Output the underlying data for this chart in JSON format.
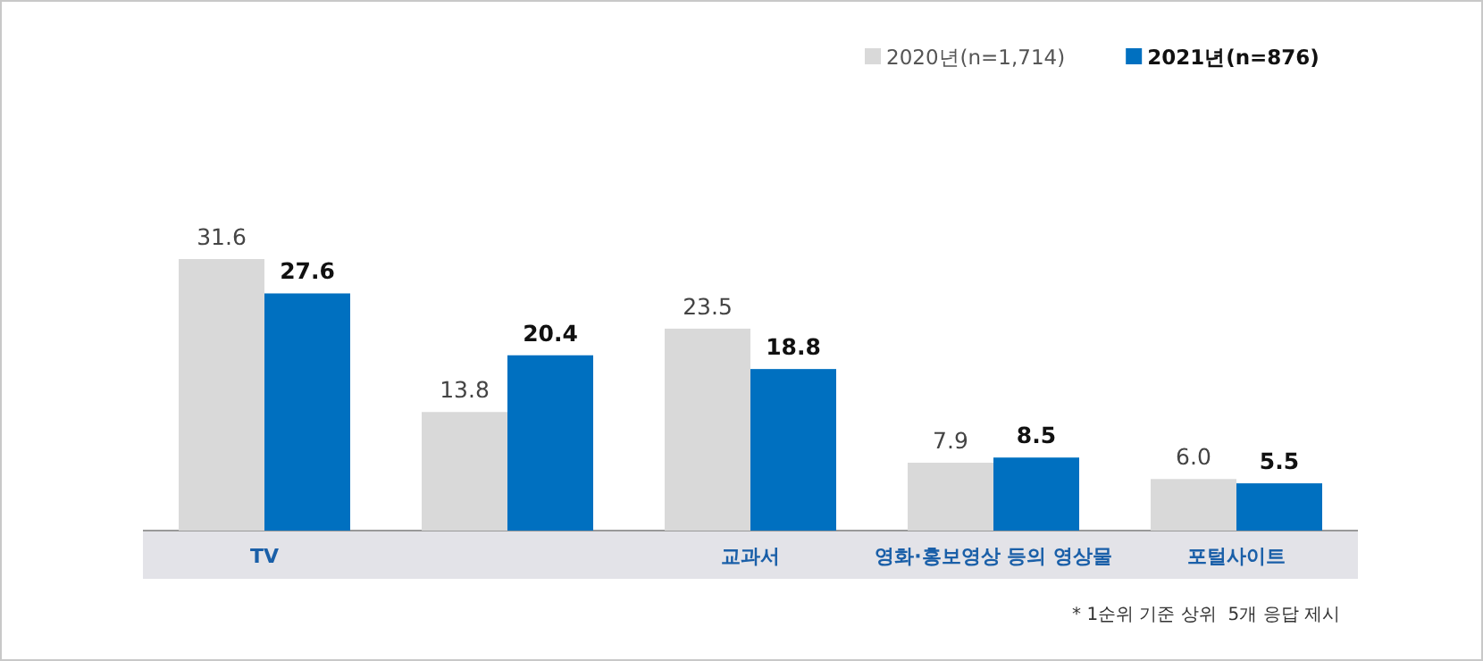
{
  "chart_data": {
    "type": "bar",
    "categories": [
      "TV",
      null,
      "교과서",
      "영화·홍보영상 등의 영상물",
      "포털사이트"
    ],
    "series": [
      {
        "name": "2020년(n=1,714)",
        "color": "#d9d9d9",
        "values": [
          31.6,
          13.8,
          23.5,
          7.9,
          6.0
        ],
        "value_labels": [
          "31.6",
          "13.8",
          "23.5",
          "7.9",
          "6.0"
        ]
      },
      {
        "name": "2021년(n=876)",
        "color": "#0070c0",
        "values": [
          27.6,
          20.4,
          18.8,
          8.5,
          5.5
        ],
        "value_labels": [
          "27.6",
          "20.4",
          "18.8",
          "8.5",
          "5.5"
        ]
      }
    ],
    "legend": "top right",
    "annotations": [
      "* 1순위 기준 상위  5개 응답 제시"
    ]
  }
}
